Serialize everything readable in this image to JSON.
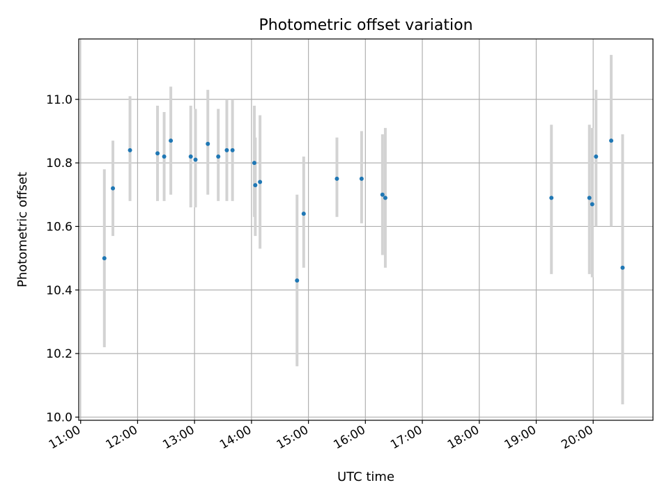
{
  "chart_data": {
    "type": "scatter",
    "title": "Photometric offset variation",
    "xlabel": "UTC time",
    "ylabel": "Photometric offset",
    "x_ticks": [
      "11:00",
      "12:00",
      "13:00",
      "14:00",
      "15:00",
      "16:00",
      "17:00",
      "18:00",
      "19:00",
      "20:00"
    ],
    "y_ticks": [
      "10.0",
      "10.2",
      "10.4",
      "10.6",
      "10.8",
      "11.0"
    ],
    "xlim": [
      "10:58",
      "21:03"
    ],
    "ylim": [
      9.99,
      11.19
    ],
    "grid": true,
    "points": [
      {
        "x": "11:25",
        "y": 10.5,
        "ylow": 10.22,
        "yhigh": 10.78
      },
      {
        "x": "11:34",
        "y": 10.72,
        "ylow": 10.57,
        "yhigh": 10.87
      },
      {
        "x": "11:52",
        "y": 10.84,
        "ylow": 10.68,
        "yhigh": 11.01
      },
      {
        "x": "12:21",
        "y": 10.83,
        "ylow": 10.68,
        "yhigh": 10.98
      },
      {
        "x": "12:28",
        "y": 10.82,
        "ylow": 10.68,
        "yhigh": 10.96
      },
      {
        "x": "12:35",
        "y": 10.87,
        "ylow": 10.7,
        "yhigh": 11.04
      },
      {
        "x": "12:56",
        "y": 10.82,
        "ylow": 10.66,
        "yhigh": 10.98
      },
      {
        "x": "13:01",
        "y": 10.81,
        "ylow": 10.66,
        "yhigh": 10.97
      },
      {
        "x": "13:14",
        "y": 10.86,
        "ylow": 10.7,
        "yhigh": 11.03
      },
      {
        "x": "13:25",
        "y": 10.82,
        "ylow": 10.68,
        "yhigh": 10.97
      },
      {
        "x": "13:34",
        "y": 10.84,
        "ylow": 10.68,
        "yhigh": 11.0
      },
      {
        "x": "13:40",
        "y": 10.84,
        "ylow": 10.68,
        "yhigh": 11.0
      },
      {
        "x": "14:03",
        "y": 10.8,
        "ylow": 10.63,
        "yhigh": 10.98
      },
      {
        "x": "14:04",
        "y": 10.73,
        "ylow": 10.57,
        "yhigh": 10.88
      },
      {
        "x": "14:09",
        "y": 10.74,
        "ylow": 10.53,
        "yhigh": 10.95
      },
      {
        "x": "14:48",
        "y": 10.43,
        "ylow": 10.16,
        "yhigh": 10.7
      },
      {
        "x": "14:55",
        "y": 10.64,
        "ylow": 10.47,
        "yhigh": 10.82
      },
      {
        "x": "15:30",
        "y": 10.75,
        "ylow": 10.63,
        "yhigh": 10.88
      },
      {
        "x": "15:56",
        "y": 10.75,
        "ylow": 10.61,
        "yhigh": 10.9
      },
      {
        "x": "16:18",
        "y": 10.7,
        "ylow": 10.51,
        "yhigh": 10.89
      },
      {
        "x": "16:21",
        "y": 10.69,
        "ylow": 10.47,
        "yhigh": 10.91
      },
      {
        "x": "19:16",
        "y": 10.69,
        "ylow": 10.45,
        "yhigh": 10.92
      },
      {
        "x": "19:56",
        "y": 10.69,
        "ylow": 10.45,
        "yhigh": 10.92
      },
      {
        "x": "19:59",
        "y": 10.67,
        "ylow": 10.44,
        "yhigh": 10.91
      },
      {
        "x": "20:03",
        "y": 10.82,
        "ylow": 10.6,
        "yhigh": 11.03
      },
      {
        "x": "20:19",
        "y": 10.87,
        "ylow": 10.6,
        "yhigh": 11.14
      },
      {
        "x": "20:31",
        "y": 10.47,
        "ylow": 10.04,
        "yhigh": 10.89
      }
    ],
    "colors": {
      "point": "#1f77b4",
      "errorbar": "#d3d3d3",
      "grid": "#b0b0b0",
      "axes": "#000000"
    }
  }
}
